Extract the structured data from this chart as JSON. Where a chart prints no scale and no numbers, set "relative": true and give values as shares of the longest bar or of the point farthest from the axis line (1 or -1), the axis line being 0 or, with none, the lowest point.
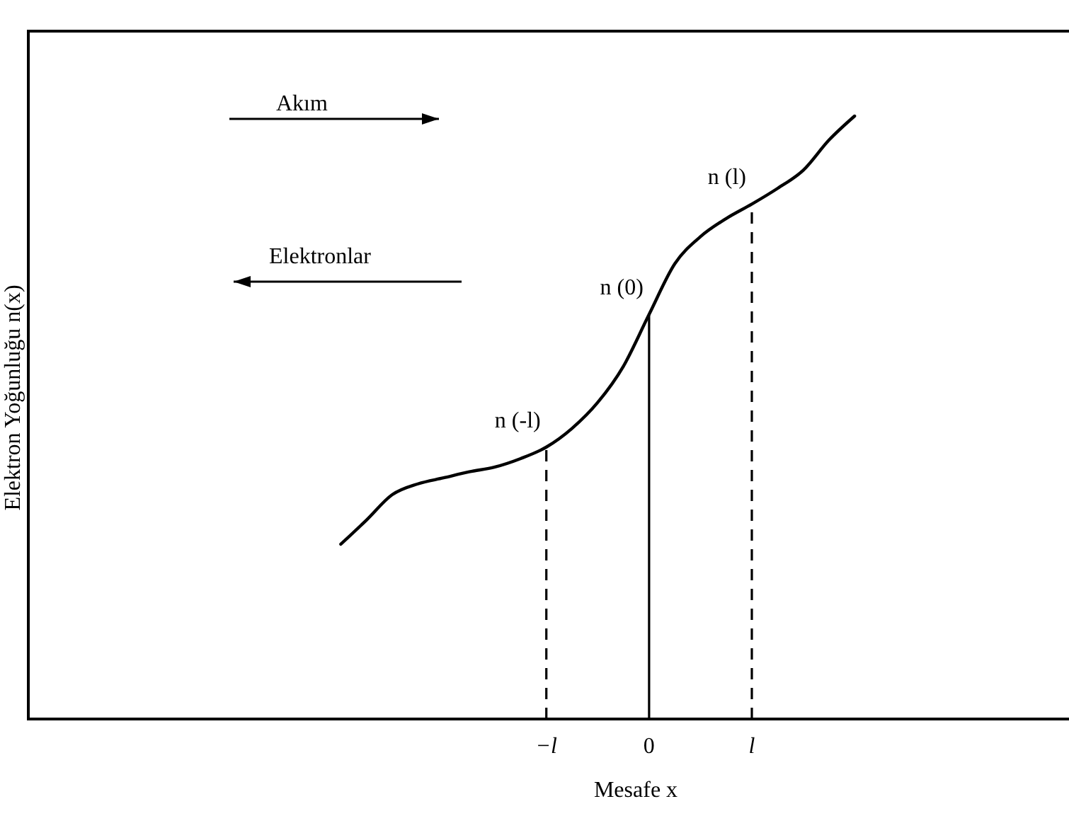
{
  "chart_data": {
    "type": "line",
    "relative": true,
    "xlabel": "Mesafe x",
    "ylabel": "Elektron Yoğunluğu n(x)",
    "categories": [
      null,
      null,
      null,
      null,
      null,
      null,
      null,
      null,
      null,
      null,
      null,
      null,
      null,
      null,
      null,
      null,
      null,
      null,
      null,
      null,
      "−l",
      null,
      null,
      null,
      "0",
      null,
      null,
      null,
      "l",
      null,
      null,
      null,
      null,
      null,
      null,
      null,
      null,
      null,
      null,
      null,
      null,
      null,
      null
    ],
    "series": [
      {
        "color": "#000000",
        "values": [
          null,
          null,
          null,
          null,
          null,
          null,
          null,
          null,
          null,
          null,
          null,
          null,
          0.29,
          0.33,
          0.372,
          0.39,
          0.4,
          0.41,
          0.418,
          0.432,
          0.451,
          0.482,
          0.525,
          0.585,
          0.671,
          0.755,
          0.8,
          0.83,
          0.854,
          0.88,
          0.91,
          0.96,
          1.0,
          null,
          null,
          null,
          null,
          null,
          null,
          null,
          null,
          null,
          null
        ]
      }
    ],
    "ref_lines": [
      {
        "axis": "x",
        "value": "−l",
        "line_style": "dashed"
      },
      {
        "axis": "x",
        "value": "0",
        "line_style": "solid"
      },
      {
        "axis": "x",
        "value": "l",
        "line_style": "dashed"
      }
    ],
    "annotations": [
      "Akım",
      "Elektronlar",
      {
        "text": "n (-l)",
        "x": "−l",
        "y": 0.451
      },
      {
        "text": "n (0)",
        "x": "0",
        "y": 0.671
      },
      {
        "text": "n (l)",
        "x": "l",
        "y": 0.854
      }
    ],
    "line_style": "solid",
    "marker": "none"
  }
}
